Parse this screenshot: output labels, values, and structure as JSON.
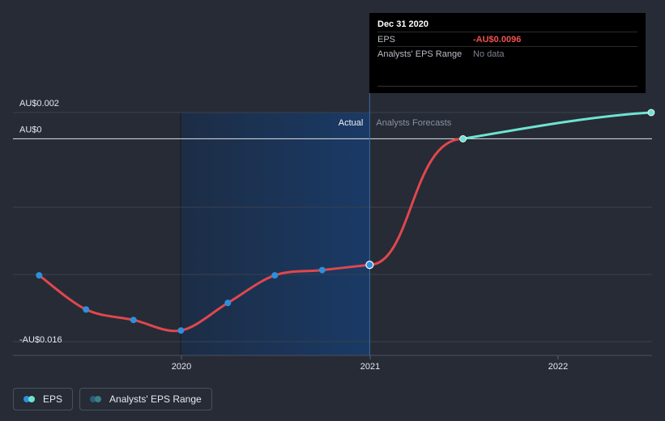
{
  "chart_data": {
    "type": "line",
    "x_axis": {
      "ticks": [
        "2020",
        "2021",
        "2022"
      ]
    },
    "y_axis": {
      "ticks": [
        "AU$0.002",
        "AU$0",
        "-AU$0.016"
      ],
      "ylim": [
        -0.0165,
        0.002
      ]
    },
    "zones": {
      "actual_label": "Actual",
      "forecast_label": "Analysts Forecasts"
    },
    "series": [
      {
        "name": "EPS",
        "kind": "actual",
        "color": "#e0474c",
        "marker_color": "#2f8fdd",
        "points": [
          {
            "x": "2019-03-31",
            "y": -0.0104
          },
          {
            "x": "2019-06-30",
            "y": -0.013
          },
          {
            "x": "2019-09-30",
            "y": -0.0138
          },
          {
            "x": "2019-12-31",
            "y": -0.0146
          },
          {
            "x": "2020-03-31",
            "y": -0.0125
          },
          {
            "x": "2020-06-30",
            "y": -0.0104
          },
          {
            "x": "2020-09-30",
            "y": -0.01
          },
          {
            "x": "2020-12-31",
            "y": -0.0096
          }
        ]
      },
      {
        "name": "EPS forecast",
        "kind": "forecast",
        "color": "#6fe3d2",
        "points": [
          {
            "x": "2021-06-30",
            "y": 0.0
          },
          {
            "x": "2022-06-30",
            "y": 0.002
          }
        ]
      }
    ],
    "forecast_link_color": "#e0474c",
    "highlight_x": "2020-12-31",
    "tooltip": {
      "title": "Dec 31 2020",
      "rows": [
        {
          "label": "EPS",
          "value": "-AU$0.0096",
          "style": "eps"
        },
        {
          "label": "Analysts' EPS Range",
          "value": "No data",
          "style": "na"
        }
      ]
    },
    "legend": [
      {
        "label": "EPS",
        "colors": [
          "#2f8fdd",
          "#6fe3d2"
        ]
      },
      {
        "label": "Analysts' EPS Range",
        "colors": [
          "#2a5f7a",
          "#3c7f86"
        ]
      }
    ]
  }
}
